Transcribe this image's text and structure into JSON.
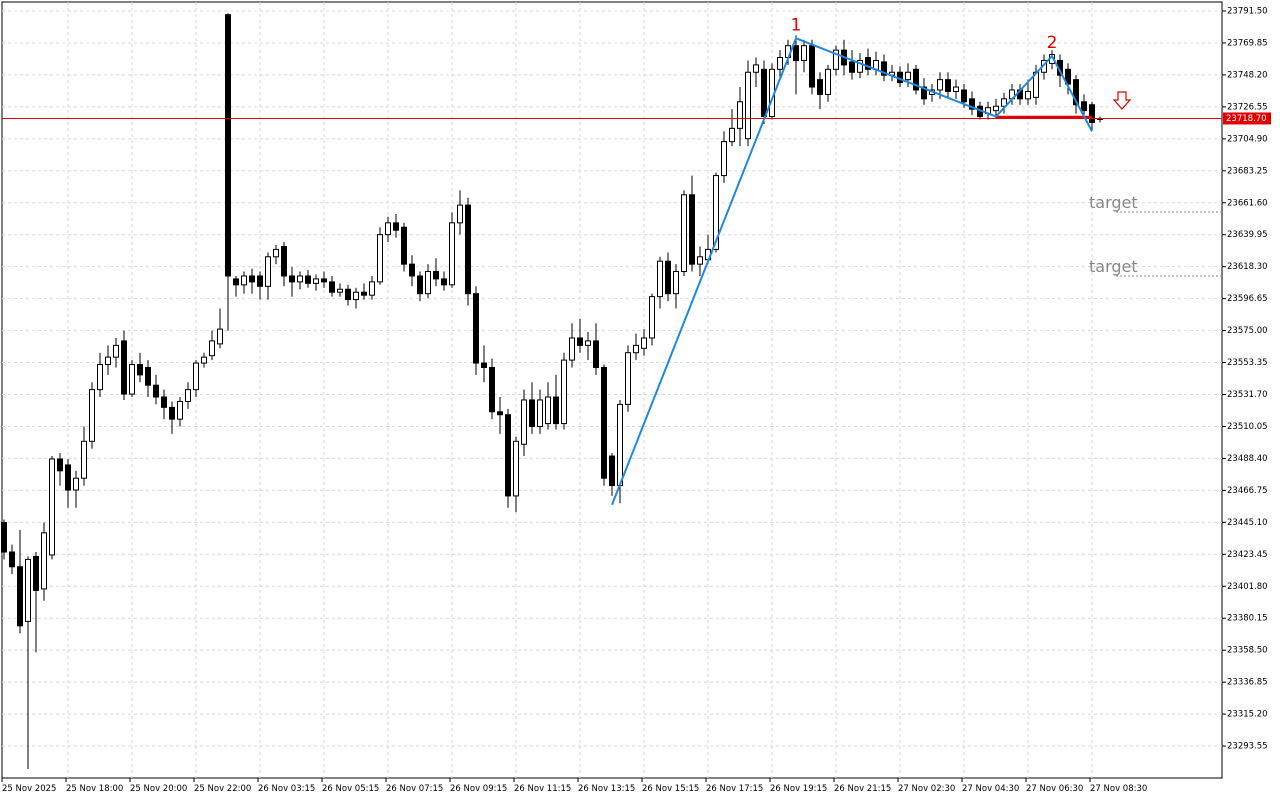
{
  "chart_data": {
    "type": "candlestick",
    "up_color": "#ffffff",
    "down_color": "#000000",
    "outline_color": "#000000",
    "categories": [
      "25 Nov 2025",
      null,
      null,
      null,
      null,
      null,
      null,
      null,
      "25 Nov 18:00",
      null,
      null,
      null,
      null,
      null,
      null,
      null,
      "25 Nov 20:00",
      null,
      null,
      null,
      null,
      null,
      null,
      null,
      "25 Nov 22:00",
      null,
      null,
      null,
      null,
      null,
      null,
      null,
      "26 Nov 03:15",
      null,
      null,
      null,
      null,
      null,
      null,
      null,
      "26 Nov 05:15",
      null,
      null,
      null,
      null,
      null,
      null,
      null,
      "26 Nov 07:15",
      null,
      null,
      null,
      null,
      null,
      null,
      null,
      "26 Nov 09:15",
      null,
      null,
      null,
      null,
      null,
      null,
      null,
      "26 Nov 11:15",
      null,
      null,
      null,
      null,
      null,
      null,
      null,
      "26 Nov 13:15",
      null,
      null,
      null,
      null,
      null,
      null,
      null,
      "26 Nov 15:15",
      null,
      null,
      null,
      null,
      null,
      null,
      null,
      "26 Nov 17:15",
      null,
      null,
      null,
      null,
      null,
      null,
      null,
      "26 Nov 19:15",
      null,
      null,
      null,
      null,
      null,
      null,
      null,
      "26 Nov 21:15",
      null,
      null,
      null,
      null,
      null,
      null,
      null,
      "27 Nov 02:30",
      null,
      null,
      null,
      null,
      null,
      null,
      null,
      "27 Nov 04:30",
      null,
      null,
      null,
      null,
      null,
      null,
      null,
      "27 Nov 06:30",
      null,
      null,
      null,
      null,
      null,
      null,
      null,
      "27 Nov 08:30",
      null
    ],
    "open": [
      23445,
      23425,
      23415,
      23378,
      23422,
      23400,
      23423,
      23488,
      23484,
      23467,
      23475,
      23500,
      23535,
      23552,
      23557,
      23568,
      23532,
      23552,
      23550,
      23538,
      23530,
      23523,
      23515,
      23527,
      23535,
      23553,
      23558,
      23566,
      23789,
      23610,
      23606,
      23612,
      23612,
      23605,
      23625,
      23632,
      23612,
      23608,
      23612,
      23607,
      23610,
      23608,
      23601,
      23603,
      23596,
      23601,
      23599,
      23608,
      23640,
      23648,
      23645,
      23620,
      23612,
      23600,
      23615,
      23610,
      23606,
      23648,
      23660,
      23600,
      23553,
      23550,
      23520,
      23518,
      23463,
      23498,
      23528,
      23510,
      23512,
      23530,
      23512,
      23555,
      23570,
      23565,
      23568,
      23550,
      23490,
      23470,
      23525,
      23560,
      23563,
      23570,
      23598,
      23622,
      23600,
      23615,
      23667,
      23620,
      23623,
      23630,
      23680,
      23703,
      23712,
      23705,
      23750,
      23752,
      23720,
      23752,
      23760,
      23768,
      23758,
      23768,
      23745,
      23735,
      23752,
      23765,
      23757,
      23750,
      23760,
      23752,
      23757,
      23748,
      23750,
      23745,
      23752,
      23740,
      23735,
      23738,
      23745,
      23737,
      23738,
      23732,
      23727,
      23722,
      23724,
      23727,
      23732,
      23738,
      23732,
      23733,
      23750,
      23756,
      23758,
      23752,
      23745,
      23730,
      23728,
      23718
    ],
    "high": [
      23447,
      23430,
      23440,
      23422,
      23425,
      23445,
      23490,
      23492,
      23488,
      23480,
      23510,
      23540,
      23560,
      23565,
      23570,
      23575,
      23555,
      23560,
      23555,
      23545,
      23535,
      23527,
      23530,
      23540,
      23555,
      23560,
      23575,
      23590,
      23790,
      23612,
      23615,
      23617,
      23615,
      23628,
      23633,
      23635,
      23618,
      23615,
      23616,
      23613,
      23615,
      23612,
      23607,
      23606,
      23604,
      23607,
      23612,
      23645,
      23652,
      23654,
      23648,
      23626,
      23615,
      23620,
      23624,
      23615,
      23655,
      23670,
      23665,
      23605,
      23565,
      23556,
      23530,
      23522,
      23503,
      23535,
      23540,
      23535,
      23540,
      23545,
      23560,
      23580,
      23583,
      23574,
      23580,
      23552,
      23492,
      23528,
      23565,
      23573,
      23576,
      23600,
      23625,
      23628,
      23620,
      23670,
      23680,
      23632,
      23640,
      23682,
      23710,
      23725,
      23740,
      23758,
      23760,
      23758,
      23756,
      23765,
      23772,
      23775,
      23772,
      23772,
      23750,
      23755,
      23768,
      23772,
      23765,
      23763,
      23766,
      23764,
      23762,
      23755,
      23754,
      23756,
      23755,
      23746,
      23742,
      23750,
      23750,
      23745,
      23742,
      23737,
      23730,
      23730,
      23732,
      23736,
      23742,
      23742,
      23745,
      23755,
      23762,
      23765,
      23762,
      23756,
      23748,
      23735,
      23730,
      23720
    ],
    "low": [
      23420,
      23410,
      23370,
      23278,
      23357,
      23392,
      23420,
      23470,
      23455,
      23455,
      23470,
      23495,
      23530,
      23545,
      23550,
      23528,
      23530,
      23540,
      23530,
      23525,
      23515,
      23505,
      23510,
      23522,
      23530,
      23550,
      23555,
      23563,
      23575,
      23598,
      23600,
      23600,
      23596,
      23596,
      23620,
      23605,
      23598,
      23603,
      23604,
      23602,
      23604,
      23598,
      23598,
      23592,
      23590,
      23596,
      23596,
      23606,
      23635,
      23638,
      23615,
      23605,
      23595,
      23597,
      23605,
      23602,
      23604,
      23640,
      23592,
      23545,
      23540,
      23515,
      23505,
      23455,
      23452,
      23490,
      23505,
      23505,
      23508,
      23508,
      23508,
      23550,
      23560,
      23555,
      23545,
      23470,
      23463,
      23458,
      23520,
      23555,
      23558,
      23565,
      23590,
      23595,
      23590,
      23612,
      23615,
      23612,
      23620,
      23628,
      23675,
      23700,
      23700,
      23700,
      23740,
      23715,
      23718,
      23745,
      23755,
      23735,
      23750,
      23735,
      23725,
      23730,
      23748,
      23748,
      23745,
      23746,
      23748,
      23748,
      23744,
      23744,
      23740,
      23740,
      23735,
      23728,
      23730,
      23732,
      23733,
      23732,
      23726,
      23721,
      23718,
      23718,
      23719,
      23722,
      23728,
      23728,
      23728,
      23728,
      23745,
      23752,
      23740,
      23735,
      23722,
      23720,
      23710,
      23716
    ],
    "close": [
      23425,
      23415,
      23375,
      23420,
      23399,
      23438,
      23488,
      23480,
      23467,
      23475,
      23500,
      23535,
      23552,
      23557,
      23565,
      23532,
      23552,
      23545,
      23538,
      23530,
      23523,
      23515,
      23527,
      23535,
      23553,
      23557,
      23568,
      23576,
      23612,
      23606,
      23612,
      23608,
      23605,
      23625,
      23630,
      23612,
      23608,
      23612,
      23607,
      23610,
      23608,
      23601,
      23603,
      23596,
      23601,
      23599,
      23608,
      23640,
      23648,
      23643,
      23620,
      23612,
      23600,
      23615,
      23610,
      23606,
      23648,
      23660,
      23600,
      23553,
      23550,
      23520,
      23518,
      23463,
      23500,
      23528,
      23510,
      23528,
      23530,
      23512,
      23555,
      23570,
      23565,
      23568,
      23550,
      23475,
      23470,
      23525,
      23560,
      23565,
      23570,
      23598,
      23622,
      23600,
      23615,
      23667,
      23620,
      23625,
      23630,
      23680,
      23703,
      23712,
      23730,
      23750,
      23755,
      23720,
      23752,
      23760,
      23768,
      23758,
      23768,
      23740,
      23735,
      23752,
      23765,
      23755,
      23750,
      23758,
      23752,
      23758,
      23748,
      23750,
      23743,
      23750,
      23738,
      23732,
      23738,
      23745,
      23737,
      23740,
      23730,
      23725,
      23720,
      23726,
      23727,
      23732,
      23738,
      23732,
      23737,
      23750,
      23758,
      23762,
      23748,
      23742,
      23728,
      23724,
      23716,
      23718.7
    ],
    "ylim": [
      23271.9,
      23797.6
    ],
    "yticks": [
      {
        "value": 23791.5,
        "label": "23791.50"
      },
      {
        "value": 23769.85,
        "label": "23769.85"
      },
      {
        "value": 23748.2,
        "label": "23748.20"
      },
      {
        "value": 23726.55,
        "label": "23726.55"
      },
      {
        "value": 23704.9,
        "label": "23704.90"
      },
      {
        "value": 23683.25,
        "label": "23683.25"
      },
      {
        "value": 23661.6,
        "label": "23661.60"
      },
      {
        "value": 23639.95,
        "label": "23639.95"
      },
      {
        "value": 23618.3,
        "label": "23618.30"
      },
      {
        "value": 23596.65,
        "label": "23596.65"
      },
      {
        "value": 23575,
        "label": "23575.00"
      },
      {
        "value": 23553.35,
        "label": "23553.35"
      },
      {
        "value": 23531.7,
        "label": "23531.70"
      },
      {
        "value": 23510.05,
        "label": "23510.05"
      },
      {
        "value": 23488.4,
        "label": "23488.40"
      },
      {
        "value": 23466.75,
        "label": "23466.75"
      },
      {
        "value": 23445.1,
        "label": "23445.10"
      },
      {
        "value": 23423.45,
        "label": "23423.45"
      },
      {
        "value": 23401.8,
        "label": "23401.80"
      },
      {
        "value": 23380.15,
        "label": "23380.15"
      },
      {
        "value": 23358.5,
        "label": "23358.50"
      },
      {
        "value": 23336.85,
        "label": "23336.85"
      },
      {
        "value": 23315.2,
        "label": "23315.20"
      },
      {
        "value": 23293.55,
        "label": "23293.55"
      }
    ],
    "grid": true,
    "zigzag": {
      "color": "#1e88e5",
      "x": [
        76,
        99,
        124,
        131,
        136
      ],
      "values": [
        23457,
        23773,
        23720,
        23761,
        23710
      ],
      "point_labels": [
        null,
        "1",
        null,
        "2",
        null
      ],
      "label_color": "#e00000"
    },
    "neckline": {
      "color": "#e00000",
      "x": [
        124,
        136
      ],
      "value": 23719.5
    },
    "price_line": {
      "color": "#e00000",
      "value": 23718.7,
      "label": "23718.70"
    },
    "targets": [
      {
        "label": "target",
        "value": 23655.3
      },
      {
        "label": "target",
        "value": 23612
      }
    ]
  }
}
